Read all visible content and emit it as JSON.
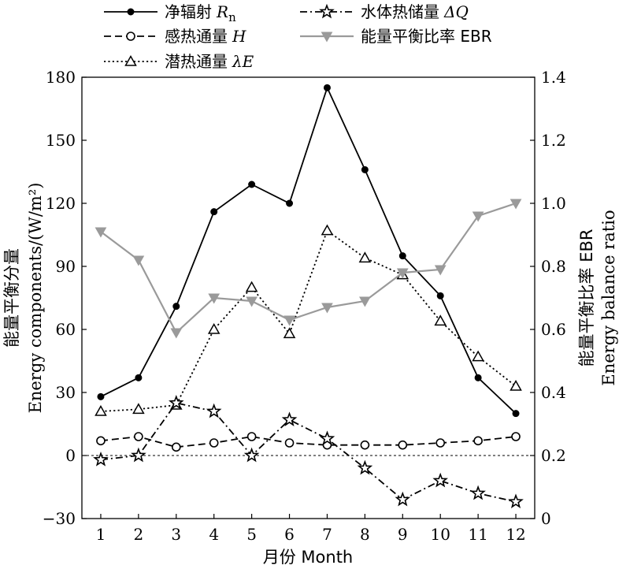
{
  "chart_data": {
    "type": "line",
    "xlabel": "月份 Month",
    "ylabel": [
      "能量平衡分量",
      "Energy components/(W/m²)"
    ],
    "ylabel_right": [
      "能量平衡比率 EBR",
      "Energy balance ratio"
    ],
    "x": [
      1,
      2,
      3,
      4,
      5,
      6,
      7,
      8,
      9,
      10,
      11,
      12
    ],
    "x_ticks": [
      "1",
      "2",
      "3",
      "4",
      "5",
      "6",
      "7",
      "8",
      "9",
      "10",
      "11",
      "12"
    ],
    "ylim": [
      -30,
      180
    ],
    "y_ticks": [
      "−30",
      "0",
      "30",
      "60",
      "90",
      "120",
      "150",
      "180"
    ],
    "ylim_right": [
      0,
      1.4
    ],
    "y_ticks_right": [
      "0",
      "0.2",
      "0.4",
      "0.6",
      "0.8",
      "1.0",
      "1.2",
      "1.4"
    ],
    "zero_reference_line": true,
    "grid": false,
    "legend_position": "top",
    "series": [
      {
        "key": "rn",
        "name": "净辐射",
        "symbol": "R",
        "sub": "n",
        "axis": "left",
        "marker": "filled-circle",
        "dash": "solid",
        "color": "#000000",
        "values": [
          28,
          37,
          71,
          116,
          129,
          120,
          175,
          136,
          95,
          76,
          37,
          20
        ]
      },
      {
        "key": "h",
        "name": "感热通量",
        "symbol": "H",
        "axis": "left",
        "marker": "open-circle",
        "dash": "dash",
        "color": "#000000",
        "values": [
          7,
          9,
          4,
          6,
          9,
          6,
          5,
          5,
          5,
          6,
          7,
          9
        ]
      },
      {
        "key": "le",
        "name": "潜热通量",
        "symbol": "λE",
        "axis": "left",
        "marker": "open-triangle",
        "dash": "dot",
        "color": "#000000",
        "values": [
          21,
          22,
          24,
          60,
          80,
          58,
          107,
          94,
          86,
          64,
          47,
          33
        ]
      },
      {
        "key": "dq",
        "name": "水体热储量",
        "symbol": "ΔQ",
        "axis": "left",
        "marker": "open-star",
        "dash": "dashdot",
        "color": "#000000",
        "values": [
          -2,
          0,
          25,
          21,
          0,
          17,
          8,
          -6,
          -21,
          -12,
          -18,
          -22
        ]
      },
      {
        "key": "ebr",
        "name": "能量平衡比率 EBR",
        "axis": "right",
        "marker": "down-triangle",
        "dash": "solid",
        "color": "#9a9a9a",
        "values": [
          0.91,
          0.82,
          0.59,
          0.7,
          0.69,
          0.63,
          0.67,
          0.69,
          0.78,
          0.79,
          0.96,
          1.0
        ]
      }
    ]
  }
}
